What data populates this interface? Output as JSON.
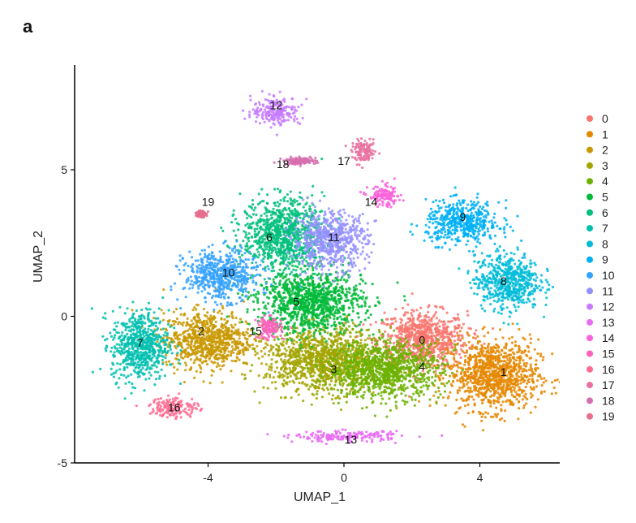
{
  "panel_label": "a",
  "chart_data": {
    "type": "scatter",
    "title": "",
    "xlabel": "UMAP_1",
    "ylabel": "UMAP_2",
    "xlim": [
      -8,
      6.5
    ],
    "ylim": [
      -5,
      8.5
    ],
    "xticks": [
      -4,
      0,
      4
    ],
    "yticks": [
      -5,
      0,
      5
    ],
    "grid": false,
    "legend_position": "right",
    "series": [
      {
        "name": "0",
        "color": "#F8766D",
        "label_at": [
          2.3,
          -0.8
        ],
        "center": [
          2.3,
          -0.8
        ],
        "spread": [
          1.1,
          0.8
        ]
      },
      {
        "name": "1",
        "color": "#E58700",
        "label_at": [
          4.7,
          -1.9
        ],
        "center": [
          4.4,
          -2.0
        ],
        "spread": [
          1.1,
          1.0
        ]
      },
      {
        "name": "2",
        "color": "#C99800",
        "label_at": [
          -4.2,
          -0.5
        ],
        "center": [
          -4.0,
          -0.8
        ],
        "spread": [
          1.1,
          0.8
        ]
      },
      {
        "name": "3",
        "color": "#A3A500",
        "label_at": [
          -0.3,
          -1.8
        ],
        "center": [
          -0.6,
          -1.5
        ],
        "spread": [
          1.4,
          0.9
        ]
      },
      {
        "name": "4",
        "color": "#6BB100",
        "label_at": [
          2.3,
          -1.7
        ],
        "center": [
          1.2,
          -1.8
        ],
        "spread": [
          1.4,
          0.8
        ]
      },
      {
        "name": "5",
        "color": "#00BA38",
        "label_at": [
          -1.4,
          0.5
        ],
        "center": [
          -1.0,
          0.5
        ],
        "spread": [
          1.3,
          0.9
        ]
      },
      {
        "name": "6",
        "color": "#00BF7D",
        "label_at": [
          -2.2,
          2.7
        ],
        "center": [
          -1.8,
          2.8
        ],
        "spread": [
          1.0,
          1.0
        ]
      },
      {
        "name": "7",
        "color": "#00C0AF",
        "label_at": [
          -6.0,
          -0.9
        ],
        "center": [
          -6.0,
          -1.0
        ],
        "spread": [
          0.7,
          1.0
        ]
      },
      {
        "name": "8",
        "color": "#00BCD8",
        "label_at": [
          4.7,
          1.2
        ],
        "center": [
          4.8,
          1.2
        ],
        "spread": [
          0.8,
          0.8
        ]
      },
      {
        "name": "9",
        "color": "#00B0F6",
        "label_at": [
          3.5,
          3.4
        ],
        "center": [
          3.5,
          3.2
        ],
        "spread": [
          0.9,
          0.6
        ]
      },
      {
        "name": "10",
        "color": "#35A2FF",
        "label_at": [
          -3.4,
          1.5
        ],
        "center": [
          -3.6,
          1.4
        ],
        "spread": [
          0.9,
          0.7
        ]
      },
      {
        "name": "11",
        "color": "#9590FF",
        "label_at": [
          -0.3,
          2.7
        ],
        "center": [
          -0.4,
          2.6
        ],
        "spread": [
          0.9,
          0.8
        ]
      },
      {
        "name": "12",
        "color": "#C77CFF",
        "label_at": [
          -2.0,
          7.2
        ],
        "center": [
          -2.0,
          7.0
        ],
        "spread": [
          0.6,
          0.4
        ]
      },
      {
        "name": "13",
        "color": "#E76BF3",
        "label_at": [
          0.2,
          -4.2
        ],
        "center": [
          0.1,
          -4.1
        ],
        "spread": [
          1.3,
          0.15
        ]
      },
      {
        "name": "14",
        "color": "#FA62DB",
        "label_at": [
          0.8,
          3.9
        ],
        "center": [
          1.2,
          4.1
        ],
        "spread": [
          0.4,
          0.3
        ]
      },
      {
        "name": "15",
        "color": "#FF62BC",
        "label_at": [
          -2.6,
          -0.5
        ],
        "center": [
          -2.2,
          -0.4
        ],
        "spread": [
          0.3,
          0.3
        ]
      },
      {
        "name": "16",
        "color": "#FF6C91",
        "label_at": [
          -5.0,
          -3.1
        ],
        "center": [
          -5.0,
          -3.1
        ],
        "spread": [
          0.6,
          0.3
        ]
      },
      {
        "name": "17",
        "color": "#E871A0",
        "label_at": [
          0.0,
          5.3
        ],
        "center": [
          0.6,
          5.6
        ],
        "spread": [
          0.3,
          0.3
        ]
      },
      {
        "name": "18",
        "color": "#D66FAF",
        "label_at": [
          -1.8,
          5.2
        ],
        "center": [
          -1.3,
          5.3
        ],
        "spread": [
          0.4,
          0.1
        ]
      },
      {
        "name": "19",
        "color": "#E66E8E",
        "label_at": [
          -4.0,
          3.9
        ],
        "center": [
          -4.2,
          3.5
        ],
        "spread": [
          0.1,
          0.1
        ]
      }
    ]
  }
}
